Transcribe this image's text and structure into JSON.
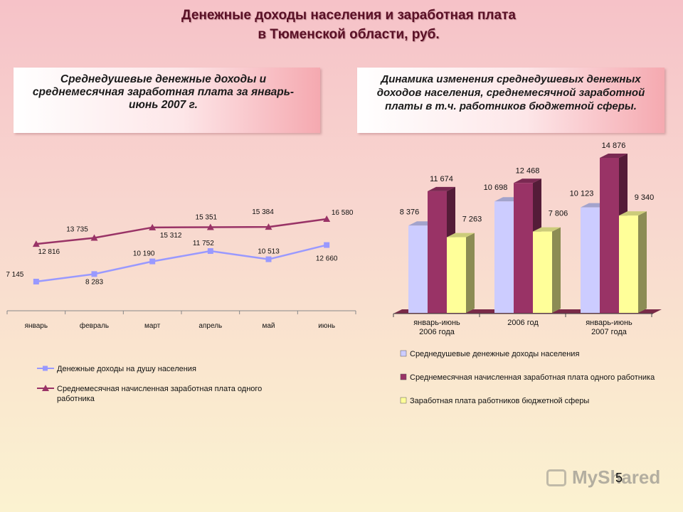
{
  "page": {
    "title_line1": "Денежные доходы населения и заработная плата",
    "title_line2": "в Тюменской области, руб.",
    "left_box_text": "Среднедушевые денежные доходы и среднемесячная заработная плата за январь-июнь 2007 г.",
    "right_box_text": "Динамика изменения среднедушевых денежных доходов населения, среднемесячной заработной платы в т.ч. работников бюджетной сферы.",
    "page_number": "5",
    "watermark_text": "MyShared"
  },
  "chart_data": [
    {
      "type": "line",
      "categories": [
        "январь",
        "февраль",
        "март",
        "апрель",
        "май",
        "июнь"
      ],
      "series": [
        {
          "name": "Денежные доходы на душу населения",
          "values": [
            7145,
            8283,
            10190,
            11752,
            10513,
            12660
          ],
          "labels": [
            "7 145",
            "8 283",
            "10 190",
            "11 752",
            "10 513",
            "12 660"
          ],
          "color": "#9999ff",
          "marker": "square"
        },
        {
          "name": "Среднемесячная начисленная заработная плата одного работника",
          "values": [
            12816,
            13735,
            15312,
            15351,
            15384,
            16580
          ],
          "labels": [
            "12 816",
            "13 735",
            "15 312",
            "15 351",
            "15 384",
            "16 580"
          ],
          "color": "#993366",
          "marker": "triangle"
        }
      ],
      "legend_position": "bottom",
      "grid": false
    },
    {
      "type": "bar",
      "categories": [
        "январь-июнь 2006 года",
        "2006 год",
        "январь-июнь 2007 года"
      ],
      "series": [
        {
          "name": "Среднедушевые денежные доходы населения",
          "values": [
            8376,
            10698,
            10123
          ],
          "labels": [
            "8 376",
            "10 698",
            "10 123"
          ],
          "color": "#ccccff"
        },
        {
          "name": "Среднемесячная начисленная заработная плата одного работника",
          "values": [
            11674,
            12468,
            14876
          ],
          "labels": [
            "11 674",
            "12 468",
            "14 876"
          ],
          "color": "#993366"
        },
        {
          "name": "Заработная плата работников бюджетной сферы",
          "values": [
            7263,
            7806,
            9340
          ],
          "labels": [
            "7 263",
            "7 806",
            "9 340"
          ],
          "color": "#ffff99"
        }
      ],
      "style": "3d-clustered",
      "legend_position": "bottom",
      "grid": false
    }
  ]
}
